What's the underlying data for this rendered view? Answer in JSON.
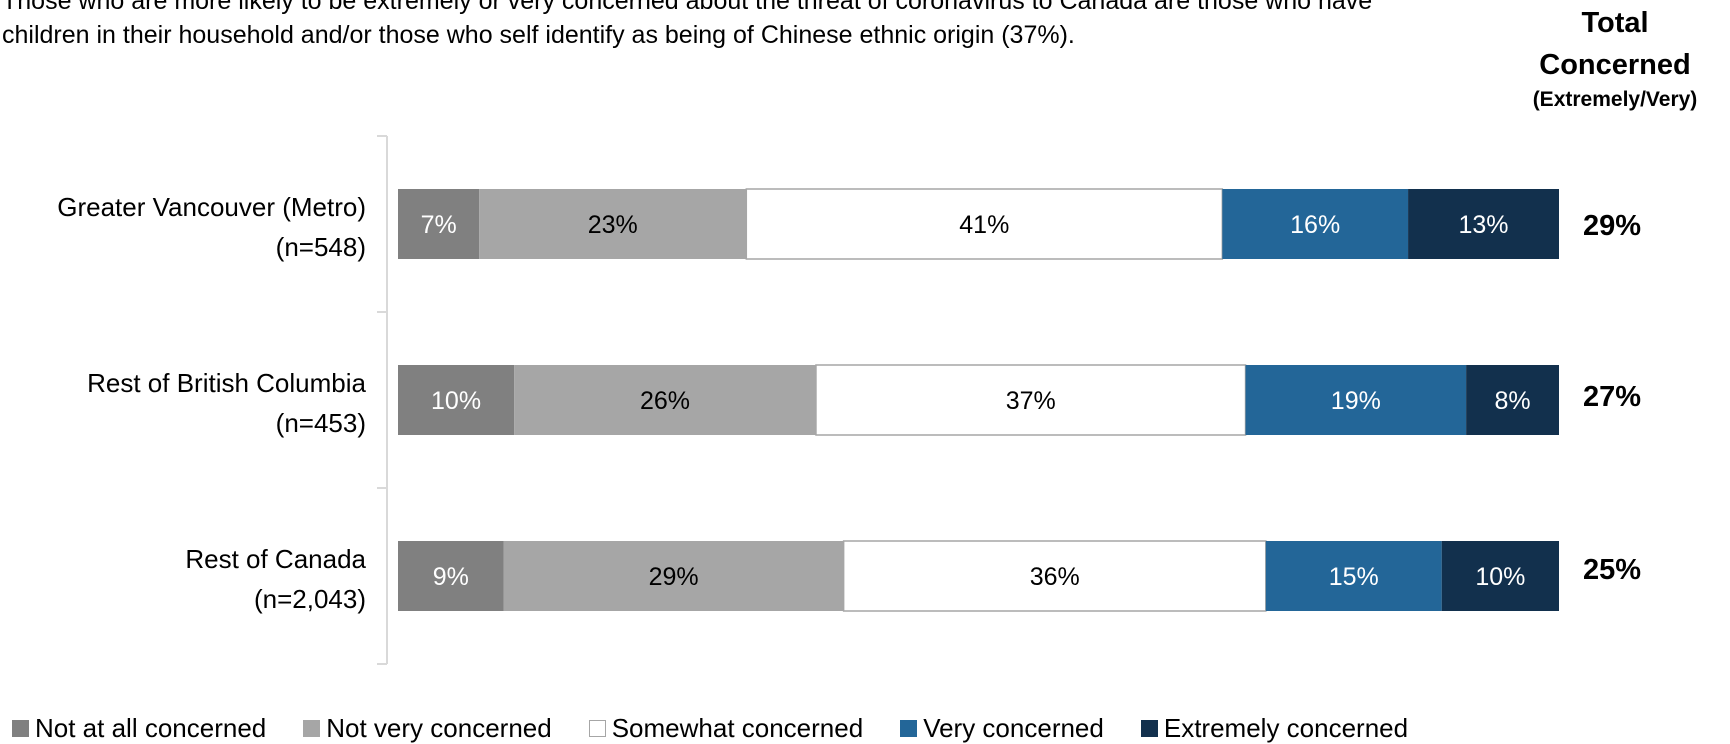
{
  "intro_text": "Those who are more likely to be extremely or very concerned about the threat of coronavirus to Canada are those who have children in their household and/or those who self identify as being of Chinese ethnic origin (37%).",
  "total_header": {
    "line1": "Total",
    "line2": "Concerned",
    "line3": "(Extremely/Very)"
  },
  "chart_data": {
    "type": "bar",
    "orientation": "horizontal",
    "stacked": true,
    "percent_stacked": true,
    "categories": [
      [
        "Greater Vancouver (Metro)",
        "(n=548)"
      ],
      [
        "Rest of British Columbia",
        "(n=453)"
      ],
      [
        "Rest of Canada",
        "(n=2,043)"
      ]
    ],
    "series": [
      {
        "name": "Not at all concerned",
        "color": "#808080",
        "label_color": "#ffffff",
        "values": [
          7,
          10,
          9
        ]
      },
      {
        "name": "Not very concerned",
        "color": "#a6a6a6",
        "label_color": "#000000",
        "values": [
          23,
          26,
          29
        ]
      },
      {
        "name": "Somewhat concerned",
        "color": "#ffffff",
        "label_color": "#000000",
        "values": [
          41,
          37,
          36
        ]
      },
      {
        "name": "Very concerned",
        "color": "#236698",
        "label_color": "#ffffff",
        "values": [
          16,
          19,
          15
        ]
      },
      {
        "name": "Extremely concerned",
        "color": "#12304d",
        "label_color": "#ffffff",
        "values": [
          13,
          8,
          10
        ]
      }
    ],
    "total_concerned": [
      "29%",
      "27%",
      "25%"
    ],
    "legend_position": "bottom",
    "grid": false
  }
}
